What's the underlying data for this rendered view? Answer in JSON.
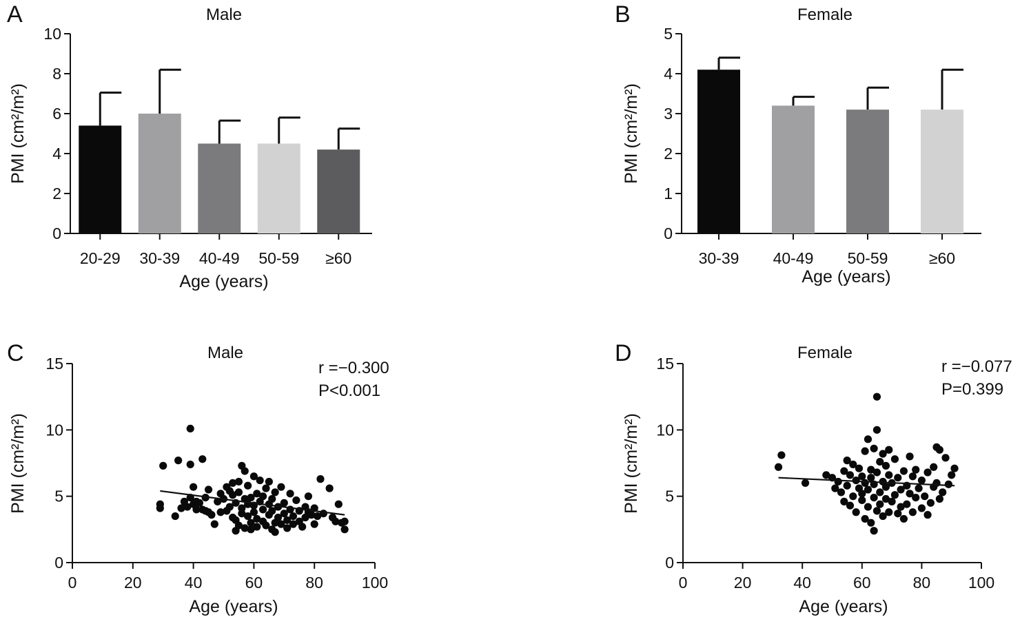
{
  "chart_data": [
    {
      "panel": "A",
      "type": "bar",
      "title": "Male",
      "xlabel": "Age (years)",
      "ylabel": "PMI (cm²/m²)",
      "categories": [
        "20-29",
        "30-39",
        "40-49",
        "50-59",
        "≥60"
      ],
      "values": [
        5.4,
        6.0,
        4.5,
        4.5,
        4.2
      ],
      "errors": [
        1.65,
        2.2,
        1.15,
        1.3,
        1.05
      ],
      "colors": [
        "#0a0a0a",
        "#a0a0a3",
        "#7b7b7e",
        "#d2d2d3",
        "#5c5c5e"
      ],
      "ylim": [
        0,
        10
      ],
      "yticks": [
        0,
        2,
        4,
        6,
        8,
        10
      ],
      "grid": false
    },
    {
      "panel": "B",
      "type": "bar",
      "title": "Female",
      "xlabel": "Age (years)",
      "ylabel": "PMI (cm²/m²)",
      "categories": [
        "30-39",
        "40-49",
        "50-59",
        "≥60"
      ],
      "values": [
        4.1,
        3.2,
        3.1,
        3.1
      ],
      "errors": [
        0.3,
        0.22,
        0.55,
        1.0
      ],
      "colors": [
        "#0a0a0a",
        "#a0a0a3",
        "#7b7b7e",
        "#d2d2d3"
      ],
      "ylim": [
        0,
        5
      ],
      "yticks": [
        0,
        1,
        2,
        3,
        4,
        5
      ],
      "grid": false
    },
    {
      "panel": "C",
      "type": "scatter",
      "title": "Male",
      "xlabel": "Age (years)",
      "ylabel": "PMI (cm²/m²)",
      "annotations": [
        "r =−0.300",
        "P<0.001"
      ],
      "xlim": [
        0,
        100
      ],
      "ylim": [
        0,
        15
      ],
      "xticks": [
        0,
        20,
        40,
        60,
        80,
        100
      ],
      "yticks": [
        0,
        5,
        10,
        15
      ],
      "trendline": [
        [
          29,
          5.4
        ],
        [
          90,
          3.6
        ]
      ],
      "points": [
        [
          29,
          4.4
        ],
        [
          29,
          4.1
        ],
        [
          30,
          7.3
        ],
        [
          34,
          3.5
        ],
        [
          35,
          7.7
        ],
        [
          36,
          4.1
        ],
        [
          37,
          4.6
        ],
        [
          38,
          4.2
        ],
        [
          39,
          7.4
        ],
        [
          39,
          10.1
        ],
        [
          39,
          4.9
        ],
        [
          40,
          4.4
        ],
        [
          40,
          5.7
        ],
        [
          41,
          4.0
        ],
        [
          41,
          4.6
        ],
        [
          42,
          4.5
        ],
        [
          43,
          4.0
        ],
        [
          43,
          7.8
        ],
        [
          44,
          4.9
        ],
        [
          44,
          3.9
        ],
        [
          45,
          3.8
        ],
        [
          45,
          5.5
        ],
        [
          46,
          3.6
        ],
        [
          47,
          2.9
        ],
        [
          48,
          4.6
        ],
        [
          49,
          5.2
        ],
        [
          49,
          3.8
        ],
        [
          50,
          4.8
        ],
        [
          51,
          5.7
        ],
        [
          51,
          3.9
        ],
        [
          52,
          4.2
        ],
        [
          52,
          5.4
        ],
        [
          53,
          3.4
        ],
        [
          53,
          6.0
        ],
        [
          53,
          5.1
        ],
        [
          54,
          2.4
        ],
        [
          54,
          3.2
        ],
        [
          54,
          4.5
        ],
        [
          55,
          5.3
        ],
        [
          55,
          6.1
        ],
        [
          55,
          2.8
        ],
        [
          56,
          4.1
        ],
        [
          56,
          7.3
        ],
        [
          56,
          3.7
        ],
        [
          57,
          4.8
        ],
        [
          57,
          2.6
        ],
        [
          57,
          6.9
        ],
        [
          58,
          3.5
        ],
        [
          58,
          4.4
        ],
        [
          58,
          5.8
        ],
        [
          59,
          3.0
        ],
        [
          59,
          4.9
        ],
        [
          59,
          2.5
        ],
        [
          60,
          3.8
        ],
        [
          60,
          6.5
        ],
        [
          60,
          4.3
        ],
        [
          61,
          5.2
        ],
        [
          61,
          3.3
        ],
        [
          61,
          2.7
        ],
        [
          62,
          4.6
        ],
        [
          62,
          6.2
        ],
        [
          63,
          3.1
        ],
        [
          63,
          5.0
        ],
        [
          63,
          4.0
        ],
        [
          64,
          2.8
        ],
        [
          64,
          5.6
        ],
        [
          65,
          3.6
        ],
        [
          65,
          4.4
        ],
        [
          65,
          6.1
        ],
        [
          66,
          2.5
        ],
        [
          66,
          3.9
        ],
        [
          66,
          4.8
        ],
        [
          67,
          5.3
        ],
        [
          67,
          3.0
        ],
        [
          67,
          2.3
        ],
        [
          68,
          4.2
        ],
        [
          68,
          3.4
        ],
        [
          69,
          5.7
        ],
        [
          69,
          2.9
        ],
        [
          70,
          4.5
        ],
        [
          70,
          3.7
        ],
        [
          71,
          3.2
        ],
        [
          71,
          2.6
        ],
        [
          72,
          5.2
        ],
        [
          72,
          4.0
        ],
        [
          73,
          3.5
        ],
        [
          73,
          2.9
        ],
        [
          74,
          4.7
        ],
        [
          75,
          3.9
        ],
        [
          75,
          3.1
        ],
        [
          76,
          2.7
        ],
        [
          77,
          4.2
        ],
        [
          77,
          3.4
        ],
        [
          78,
          5.0
        ],
        [
          78,
          3.8
        ],
        [
          79,
          3.6
        ],
        [
          80,
          2.9
        ],
        [
          80,
          4.1
        ],
        [
          81,
          3.5
        ],
        [
          82,
          6.3
        ],
        [
          83,
          3.7
        ],
        [
          85,
          5.6
        ],
        [
          86,
          3.4
        ],
        [
          87,
          3.1
        ],
        [
          88,
          4.4
        ],
        [
          89,
          3.0
        ],
        [
          90,
          3.1
        ],
        [
          90,
          2.5
        ]
      ]
    },
    {
      "panel": "D",
      "type": "scatter",
      "title": "Female",
      "xlabel": "Age (years)",
      "ylabel": "PMI (cm²/m²)",
      "annotations": [
        "r =−0.077",
        "P=0.399"
      ],
      "xlim": [
        0,
        100
      ],
      "ylim": [
        0,
        15
      ],
      "xticks": [
        0,
        20,
        40,
        60,
        80,
        100
      ],
      "yticks": [
        0,
        5,
        10,
        15
      ],
      "trendline": [
        [
          32,
          6.4
        ],
        [
          91,
          5.8
        ]
      ],
      "points": [
        [
          32,
          7.2
        ],
        [
          33,
          8.1
        ],
        [
          41,
          6.0
        ],
        [
          48,
          6.6
        ],
        [
          50,
          6.4
        ],
        [
          51,
          5.6
        ],
        [
          52,
          6.1
        ],
        [
          53,
          5.3
        ],
        [
          54,
          6.9
        ],
        [
          54,
          4.6
        ],
        [
          55,
          7.7
        ],
        [
          55,
          5.8
        ],
        [
          56,
          4.3
        ],
        [
          56,
          6.6
        ],
        [
          57,
          7.4
        ],
        [
          57,
          5.0
        ],
        [
          58,
          6.2
        ],
        [
          58,
          3.8
        ],
        [
          59,
          5.6
        ],
        [
          59,
          7.1
        ],
        [
          60,
          4.7
        ],
        [
          60,
          6.5
        ],
        [
          60,
          5.2
        ],
        [
          61,
          8.4
        ],
        [
          61,
          3.3
        ],
        [
          61,
          6.0
        ],
        [
          62,
          9.3
        ],
        [
          62,
          5.5
        ],
        [
          62,
          4.2
        ],
        [
          63,
          7.0
        ],
        [
          63,
          6.4
        ],
        [
          63,
          3.0
        ],
        [
          64,
          8.6
        ],
        [
          64,
          5.9
        ],
        [
          64,
          2.4
        ],
        [
          64,
          4.9
        ],
        [
          65,
          12.5
        ],
        [
          65,
          10.0
        ],
        [
          65,
          6.8
        ],
        [
          65,
          3.9
        ],
        [
          66,
          7.6
        ],
        [
          66,
          5.3
        ],
        [
          66,
          4.4
        ],
        [
          67,
          8.2
        ],
        [
          67,
          6.1
        ],
        [
          67,
          3.5
        ],
        [
          68,
          5.7
        ],
        [
          68,
          7.3
        ],
        [
          68,
          4.8
        ],
        [
          69,
          6.6
        ],
        [
          69,
          8.5
        ],
        [
          69,
          3.8
        ],
        [
          70,
          6.0
        ],
        [
          70,
          4.6
        ],
        [
          71,
          7.8
        ],
        [
          71,
          5.1
        ],
        [
          72,
          3.7
        ],
        [
          72,
          6.4
        ],
        [
          73,
          5.5
        ],
        [
          73,
          4.2
        ],
        [
          74,
          6.9
        ],
        [
          74,
          3.3
        ],
        [
          75,
          5.8
        ],
        [
          75,
          4.4
        ],
        [
          76,
          8.0
        ],
        [
          76,
          5.2
        ],
        [
          77,
          6.5
        ],
        [
          77,
          3.8
        ],
        [
          78,
          4.9
        ],
        [
          78,
          7.0
        ],
        [
          79,
          5.6
        ],
        [
          80,
          4.1
        ],
        [
          80,
          6.2
        ],
        [
          81,
          5.0
        ],
        [
          82,
          3.6
        ],
        [
          82,
          6.8
        ],
        [
          83,
          4.5
        ],
        [
          84,
          5.7
        ],
        [
          84,
          7.2
        ],
        [
          85,
          8.7
        ],
        [
          85,
          6.0
        ],
        [
          86,
          4.8
        ],
        [
          86,
          8.5
        ],
        [
          87,
          5.3
        ],
        [
          88,
          7.9
        ],
        [
          89,
          5.9
        ],
        [
          90,
          6.6
        ],
        [
          91,
          7.1
        ]
      ]
    }
  ]
}
